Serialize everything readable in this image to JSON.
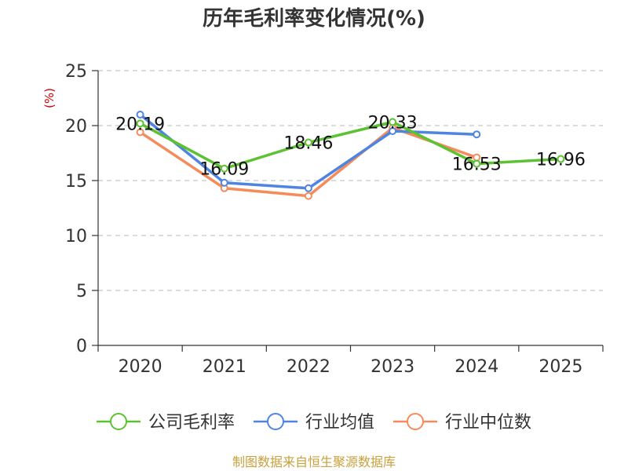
{
  "chart_data": {
    "type": "line",
    "title": "历年毛利率变化情况(%)",
    "ylabel": "(%)",
    "categories": [
      "2020",
      "2021",
      "2022",
      "2023",
      "2024",
      "2025"
    ],
    "ylim": [
      0,
      25
    ],
    "yticks": [
      "0",
      "5",
      "10",
      "15",
      "20",
      "25"
    ],
    "grid": true,
    "legend_position": "bottom",
    "series": [
      {
        "name": "公司毛利率",
        "color": "#5cc232",
        "values": [
          20.19,
          16.09,
          18.46,
          20.33,
          16.53,
          16.96
        ],
        "labels": [
          "20.19",
          "16.09",
          "18.46",
          "20.33",
          "16.53",
          "16.96"
        ]
      },
      {
        "name": "行业均值",
        "color": "#4f85e0",
        "values": [
          21.0,
          14.8,
          14.3,
          19.5,
          19.2,
          null
        ]
      },
      {
        "name": "行业中位数",
        "color": "#f58b5a",
        "values": [
          19.4,
          14.3,
          13.6,
          19.8,
          17.1,
          null
        ]
      }
    ]
  },
  "source": {
    "text": "制图数据来自恒生聚源数据库",
    "color": "#c9a03c"
  },
  "unit_color": "#cc0000"
}
